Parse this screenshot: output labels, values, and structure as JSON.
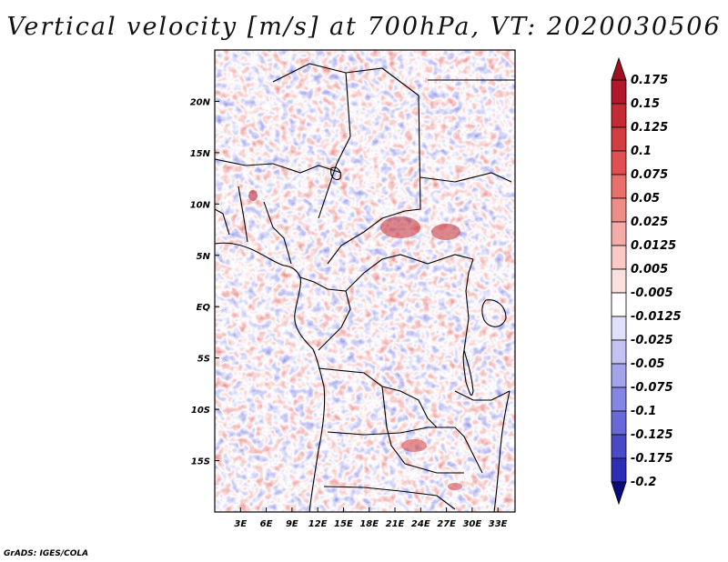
{
  "title": "Vertical velocity [m/s] at 700hPa, VT: 2020030506",
  "credit": "GrADS: IGES/COLA",
  "map": {
    "variable": "Vertical velocity",
    "units": "m/s",
    "level": "700hPa",
    "valid_time": "2020030506",
    "lon_range": [
      0,
      35
    ],
    "lat_range": [
      -20,
      25
    ],
    "lon_ticks": [
      {
        "value": 3,
        "label": "3E"
      },
      {
        "value": 6,
        "label": "6E"
      },
      {
        "value": 9,
        "label": "9E"
      },
      {
        "value": 12,
        "label": "12E"
      },
      {
        "value": 15,
        "label": "15E"
      },
      {
        "value": 18,
        "label": "18E"
      },
      {
        "value": 21,
        "label": "21E"
      },
      {
        "value": 24,
        "label": "24E"
      },
      {
        "value": 27,
        "label": "27E"
      },
      {
        "value": 30,
        "label": "30E"
      },
      {
        "value": 33,
        "label": "33E"
      }
    ],
    "lat_ticks": [
      {
        "value": 20,
        "label": "20N"
      },
      {
        "value": 15,
        "label": "15N"
      },
      {
        "value": 10,
        "label": "10N"
      },
      {
        "value": 5,
        "label": "5N"
      },
      {
        "value": 0,
        "label": "EQ"
      },
      {
        "value": -5,
        "label": "5S"
      },
      {
        "value": -10,
        "label": "10S"
      },
      {
        "value": -15,
        "label": "15S"
      }
    ]
  },
  "colorbar": {
    "levels": [
      {
        "label": "0.175",
        "color": "#b2182b"
      },
      {
        "label": "0.15",
        "color": "#c42b33"
      },
      {
        "label": "0.125",
        "color": "#d43d40"
      },
      {
        "label": "0.1",
        "color": "#e05050"
      },
      {
        "label": "0.075",
        "color": "#e86f6a"
      },
      {
        "label": "0.05",
        "color": "#ef8e88"
      },
      {
        "label": "0.025",
        "color": "#f4aca7"
      },
      {
        "label": "0.0125",
        "color": "#f8c9c5"
      },
      {
        "label": "0.005",
        "color": "#fbe1de"
      },
      {
        "label": "-0.005",
        "color": "#ffffff"
      },
      {
        "label": "-0.0125",
        "color": "#e0e0fa"
      },
      {
        "label": "-0.025",
        "color": "#c3c3f3"
      },
      {
        "label": "-0.05",
        "color": "#a4a4ec"
      },
      {
        "label": "-0.075",
        "color": "#8585e4"
      },
      {
        "label": "-0.1",
        "color": "#6868d8"
      },
      {
        "label": "-0.125",
        "color": "#4a4ac8"
      },
      {
        "label": "-0.175",
        "color": "#2e2eb4"
      },
      {
        "label": "-0.2",
        "color": "#14149c"
      }
    ],
    "top_arrow_color": "#9e1020",
    "bottom_arrow_color": "#0a0a7a"
  }
}
